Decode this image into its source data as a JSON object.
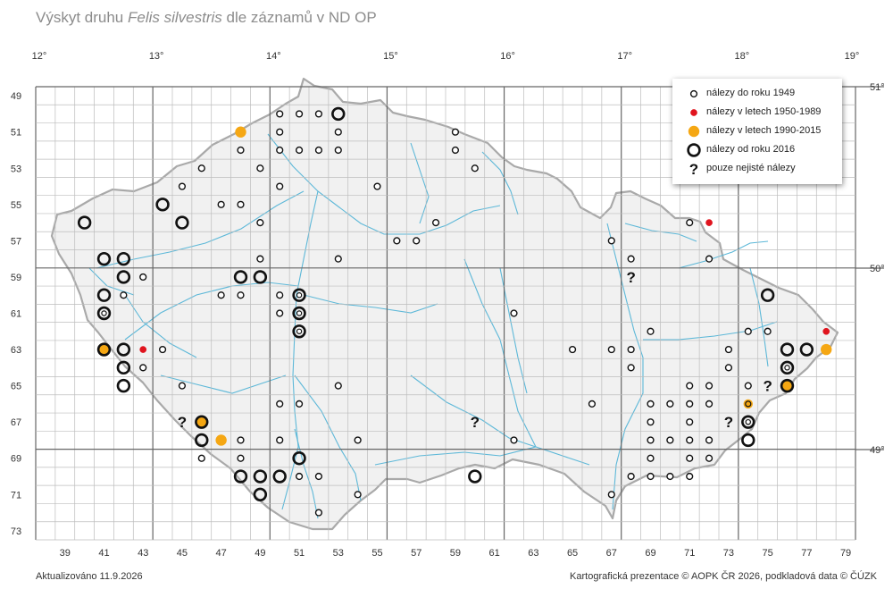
{
  "title": {
    "prefix": "Výskyt druhu ",
    "species": "Felis silvestris",
    "suffix": " dle záznamů v ND OP"
  },
  "longitude_labels": [
    "12°",
    "13°",
    "14°",
    "15°",
    "16°",
    "17°",
    "18°",
    "19°"
  ],
  "latitude_labels": [
    "51°",
    "50°",
    "49°"
  ],
  "column_labels": [
    "39",
    "41",
    "43",
    "45",
    "47",
    "49",
    "51",
    "53",
    "55",
    "57",
    "59",
    "61",
    "63",
    "65",
    "67",
    "69",
    "71",
    "73",
    "75",
    "77",
    "79"
  ],
  "row_labels": [
    "49",
    "51",
    "53",
    "55",
    "57",
    "59",
    "61",
    "63",
    "65",
    "67",
    "69",
    "71",
    "73"
  ],
  "legend": [
    {
      "symbol": "small-ring",
      "label": "nálezy do roku 1949"
    },
    {
      "symbol": "red-dot",
      "label": "nálezy v letech 1950-1989"
    },
    {
      "symbol": "orange-dot",
      "label": "nálezy v letech 1990-2015"
    },
    {
      "symbol": "big-ring",
      "label": "nálezy od roku 2016"
    },
    {
      "symbol": "question",
      "label": "pouze nejisté nálezy"
    }
  ],
  "colors": {
    "red": "#e0141e",
    "orange": "#f5a713",
    "river": "#5db8d8",
    "border": "#a9a9a9",
    "grid": "#555555"
  },
  "records": [
    {
      "col": 52,
      "row": 50,
      "type": "old"
    },
    {
      "col": 51,
      "row": 50,
      "type": "old"
    },
    {
      "col": 53,
      "row": 50,
      "type": "big"
    },
    {
      "col": 50,
      "row": 50,
      "type": "old"
    },
    {
      "col": 48,
      "row": 51,
      "type": "orange"
    },
    {
      "col": 50,
      "row": 51,
      "type": "old"
    },
    {
      "col": 53,
      "row": 51,
      "type": "old"
    },
    {
      "col": 48,
      "row": 52,
      "type": "old"
    },
    {
      "col": 50,
      "row": 52,
      "type": "old"
    },
    {
      "col": 51,
      "row": 52,
      "type": "old"
    },
    {
      "col": 52,
      "row": 52,
      "type": "old"
    },
    {
      "col": 53,
      "row": 52,
      "type": "old"
    },
    {
      "col": 49,
      "row": 53,
      "type": "old"
    },
    {
      "col": 46,
      "row": 53,
      "type": "old"
    },
    {
      "col": 45,
      "row": 54,
      "type": "old"
    },
    {
      "col": 50,
      "row": 54,
      "type": "old"
    },
    {
      "col": 44,
      "row": 55,
      "type": "big"
    },
    {
      "col": 47,
      "row": 55,
      "type": "old"
    },
    {
      "col": 48,
      "row": 55,
      "type": "old"
    },
    {
      "col": 40,
      "row": 56,
      "type": "big"
    },
    {
      "col": 45,
      "row": 56,
      "type": "big"
    },
    {
      "col": 49,
      "row": 56,
      "type": "old"
    },
    {
      "col": 41,
      "row": 58,
      "type": "big"
    },
    {
      "col": 42,
      "row": 58,
      "type": "big"
    },
    {
      "col": 49,
      "row": 58,
      "type": "old"
    },
    {
      "col": 53,
      "row": 58,
      "type": "old"
    },
    {
      "col": 42,
      "row": 59,
      "type": "big"
    },
    {
      "col": 43,
      "row": 59,
      "type": "old"
    },
    {
      "col": 48,
      "row": 59,
      "type": "big"
    },
    {
      "col": 49,
      "row": 59,
      "type": "big"
    },
    {
      "col": 41,
      "row": 60,
      "type": "big"
    },
    {
      "col": 42,
      "row": 60,
      "type": "old"
    },
    {
      "col": 47,
      "row": 60,
      "type": "old"
    },
    {
      "col": 48,
      "row": 60,
      "type": "old"
    },
    {
      "col": 50,
      "row": 60,
      "type": "old"
    },
    {
      "col": 51,
      "row": 60,
      "type": "big2"
    },
    {
      "col": 41,
      "row": 61,
      "type": "big2"
    },
    {
      "col": 50,
      "row": 61,
      "type": "old"
    },
    {
      "col": 51,
      "row": 61,
      "type": "big2"
    },
    {
      "col": 51,
      "row": 62,
      "type": "big2"
    },
    {
      "col": 41,
      "row": 63,
      "type": "bigorange"
    },
    {
      "col": 42,
      "row": 63,
      "type": "big"
    },
    {
      "col": 43,
      "row": 63,
      "type": "red"
    },
    {
      "col": 44,
      "row": 63,
      "type": "old"
    },
    {
      "col": 42,
      "row": 64,
      "type": "big"
    },
    {
      "col": 43,
      "row": 64,
      "type": "old"
    },
    {
      "col": 42,
      "row": 65,
      "type": "big"
    },
    {
      "col": 45,
      "row": 65,
      "type": "old"
    },
    {
      "col": 53,
      "row": 65,
      "type": "old"
    },
    {
      "col": 50,
      "row": 66,
      "type": "old"
    },
    {
      "col": 51,
      "row": 66,
      "type": "old"
    },
    {
      "col": 45,
      "row": 67,
      "type": "question"
    },
    {
      "col": 46,
      "row": 67,
      "type": "bigorange"
    },
    {
      "col": 46,
      "row": 68,
      "type": "big"
    },
    {
      "col": 47,
      "row": 68,
      "type": "orange"
    },
    {
      "col": 48,
      "row": 68,
      "type": "old"
    },
    {
      "col": 50,
      "row": 68,
      "type": "old"
    },
    {
      "col": 54,
      "row": 68,
      "type": "old"
    },
    {
      "col": 46,
      "row": 69,
      "type": "old"
    },
    {
      "col": 48,
      "row": 69,
      "type": "old"
    },
    {
      "col": 51,
      "row": 69,
      "type": "big"
    },
    {
      "col": 48,
      "row": 70,
      "type": "big"
    },
    {
      "col": 49,
      "row": 70,
      "type": "big"
    },
    {
      "col": 50,
      "row": 70,
      "type": "big"
    },
    {
      "col": 51,
      "row": 70,
      "type": "old"
    },
    {
      "col": 52,
      "row": 70,
      "type": "old"
    },
    {
      "col": 49,
      "row": 71,
      "type": "big"
    },
    {
      "col": 54,
      "row": 71,
      "type": "old"
    },
    {
      "col": 52,
      "row": 72,
      "type": "old"
    },
    {
      "col": 55,
      "row": 54,
      "type": "old"
    },
    {
      "col": 58,
      "row": 56,
      "type": "old"
    },
    {
      "col": 56,
      "row": 57,
      "type": "old"
    },
    {
      "col": 57,
      "row": 57,
      "type": "old"
    },
    {
      "col": 59,
      "row": 51,
      "type": "old"
    },
    {
      "col": 59,
      "row": 52,
      "type": "old"
    },
    {
      "col": 60,
      "row": 53,
      "type": "old"
    },
    {
      "col": 62,
      "row": 61,
      "type": "old"
    },
    {
      "col": 60,
      "row": 67,
      "type": "question"
    },
    {
      "col": 62,
      "row": 68,
      "type": "old"
    },
    {
      "col": 60,
      "row": 70,
      "type": "big"
    },
    {
      "col": 65,
      "row": 63,
      "type": "old"
    },
    {
      "col": 66,
      "row": 66,
      "type": "old"
    },
    {
      "col": 67,
      "row": 57,
      "type": "old"
    },
    {
      "col": 68,
      "row": 58,
      "type": "old"
    },
    {
      "col": 68,
      "row": 59,
      "type": "question"
    },
    {
      "col": 67,
      "row": 63,
      "type": "old"
    },
    {
      "col": 68,
      "row": 63,
      "type": "old"
    },
    {
      "col": 68,
      "row": 64,
      "type": "old"
    },
    {
      "col": 69,
      "row": 62,
      "type": "old"
    },
    {
      "col": 67,
      "row": 71,
      "type": "old"
    },
    {
      "col": 68,
      "row": 70,
      "type": "old"
    },
    {
      "col": 69,
      "row": 66,
      "type": "old"
    },
    {
      "col": 69,
      "row": 67,
      "type": "old"
    },
    {
      "col": 69,
      "row": 68,
      "type": "old"
    },
    {
      "col": 69,
      "row": 69,
      "type": "old"
    },
    {
      "col": 69,
      "row": 70,
      "type": "old"
    },
    {
      "col": 70,
      "row": 66,
      "type": "old"
    },
    {
      "col": 70,
      "row": 68,
      "type": "old"
    },
    {
      "col": 70,
      "row": 70,
      "type": "old"
    },
    {
      "col": 71,
      "row": 56,
      "type": "old"
    },
    {
      "col": 72,
      "row": 56,
      "type": "red"
    },
    {
      "col": 72,
      "row": 58,
      "type": "old"
    },
    {
      "col": 71,
      "row": 65,
      "type": "old"
    },
    {
      "col": 72,
      "row": 65,
      "type": "old"
    },
    {
      "col": 71,
      "row": 66,
      "type": "old"
    },
    {
      "col": 72,
      "row": 66,
      "type": "old"
    },
    {
      "col": 71,
      "row": 67,
      "type": "old"
    },
    {
      "col": 71,
      "row": 68,
      "type": "old"
    },
    {
      "col": 72,
      "row": 68,
      "type": "old"
    },
    {
      "col": 71,
      "row": 69,
      "type": "old"
    },
    {
      "col": 72,
      "row": 69,
      "type": "old"
    },
    {
      "col": 71,
      "row": 70,
      "type": "old"
    },
    {
      "col": 73,
      "row": 63,
      "type": "old"
    },
    {
      "col": 73,
      "row": 64,
      "type": "old"
    },
    {
      "col": 73,
      "row": 67,
      "type": "question"
    },
    {
      "col": 74,
      "row": 62,
      "type": "old"
    },
    {
      "col": 75,
      "row": 62,
      "type": "old"
    },
    {
      "col": 74,
      "row": 65,
      "type": "old"
    },
    {
      "col": 75,
      "row": 65,
      "type": "question"
    },
    {
      "col": 74,
      "row": 66,
      "type": "oldorange"
    },
    {
      "col": 74,
      "row": 67,
      "type": "big2"
    },
    {
      "col": 74,
      "row": 68,
      "type": "big"
    },
    {
      "col": 75,
      "row": 60,
      "type": "big"
    },
    {
      "col": 76,
      "row": 63,
      "type": "big"
    },
    {
      "col": 76,
      "row": 64,
      "type": "big2"
    },
    {
      "col": 76,
      "row": 65,
      "type": "bigorange"
    },
    {
      "col": 77,
      "row": 63,
      "type": "big"
    },
    {
      "col": 78,
      "row": 62,
      "type": "red"
    },
    {
      "col": 78,
      "row": 63,
      "type": "orange"
    }
  ],
  "footer": {
    "left": "Aktualizováno 11.9.2026",
    "right": "Kartografická prezentace © AOPK ČR 2026, podkladová data © ČÚZK"
  }
}
